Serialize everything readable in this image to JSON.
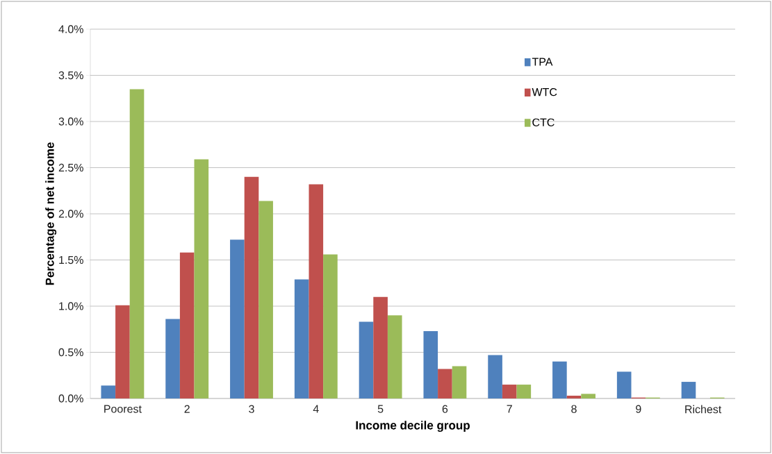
{
  "chart_data": {
    "type": "bar",
    "xlabel": "Income decile group",
    "ylabel": "Percentage of net income",
    "categories": [
      "Poorest",
      "2",
      "3",
      "4",
      "5",
      "6",
      "7",
      "8",
      "9",
      "Richest"
    ],
    "series": [
      {
        "name": "TPA",
        "color": "#4f81bd",
        "values": [
          0.14,
          0.86,
          1.72,
          1.29,
          0.83,
          0.73,
          0.47,
          0.4,
          0.29,
          0.18
        ]
      },
      {
        "name": "WTC",
        "color": "#c0504d",
        "values": [
          1.01,
          1.58,
          2.4,
          2.32,
          1.1,
          0.32,
          0.15,
          0.03,
          0.01,
          0.0
        ]
      },
      {
        "name": "CTC",
        "color": "#9bbb59",
        "values": [
          3.35,
          2.59,
          2.14,
          1.56,
          0.9,
          0.35,
          0.15,
          0.05,
          0.01,
          0.01
        ]
      }
    ],
    "ylim": [
      0,
      4
    ],
    "yticks": [
      {
        "value": 0,
        "label": "0.0%"
      },
      {
        "value": 0.5,
        "label": "0.5%"
      },
      {
        "value": 1,
        "label": "1.0%"
      },
      {
        "value": 1.5,
        "label": "1.5%"
      },
      {
        "value": 2,
        "label": "2.0%"
      },
      {
        "value": 2.5,
        "label": "2.5%"
      },
      {
        "value": 3,
        "label": "3.0%"
      },
      {
        "value": 3.5,
        "label": "3.5%"
      },
      {
        "value": 4,
        "label": "4.0%"
      }
    ],
    "grid": "y",
    "legend": "top right"
  }
}
